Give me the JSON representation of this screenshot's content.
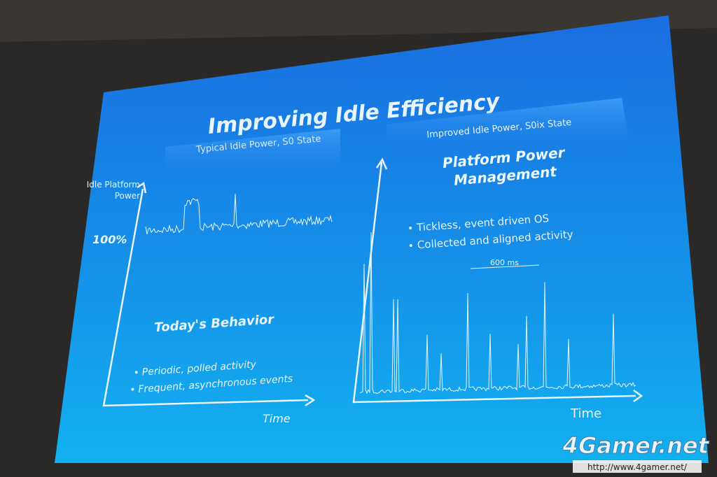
{
  "slide": {
    "title": "Improving Idle Efficiency",
    "left_panel": {
      "header": "Typical Idle Power, S0 State",
      "y_axis_label": "Idle Platform Power",
      "level_label": "100%",
      "heading": "Today's Behavior",
      "bullets": [
        "Periodic, polled activity",
        "Frequent, asynchronous events"
      ],
      "x_axis_label": "Time"
    },
    "right_panel": {
      "header": "Improved Idle Power, S0ix State",
      "heading": "Platform Power Management",
      "bullets": [
        "Tickless, event driven OS",
        "Collected and aligned activity"
      ],
      "interval_label": "600 ms",
      "x_axis_label": "Time"
    }
  },
  "watermark": {
    "logo": "4Gamer.net",
    "url": "http://www.4gamer.net/"
  }
}
